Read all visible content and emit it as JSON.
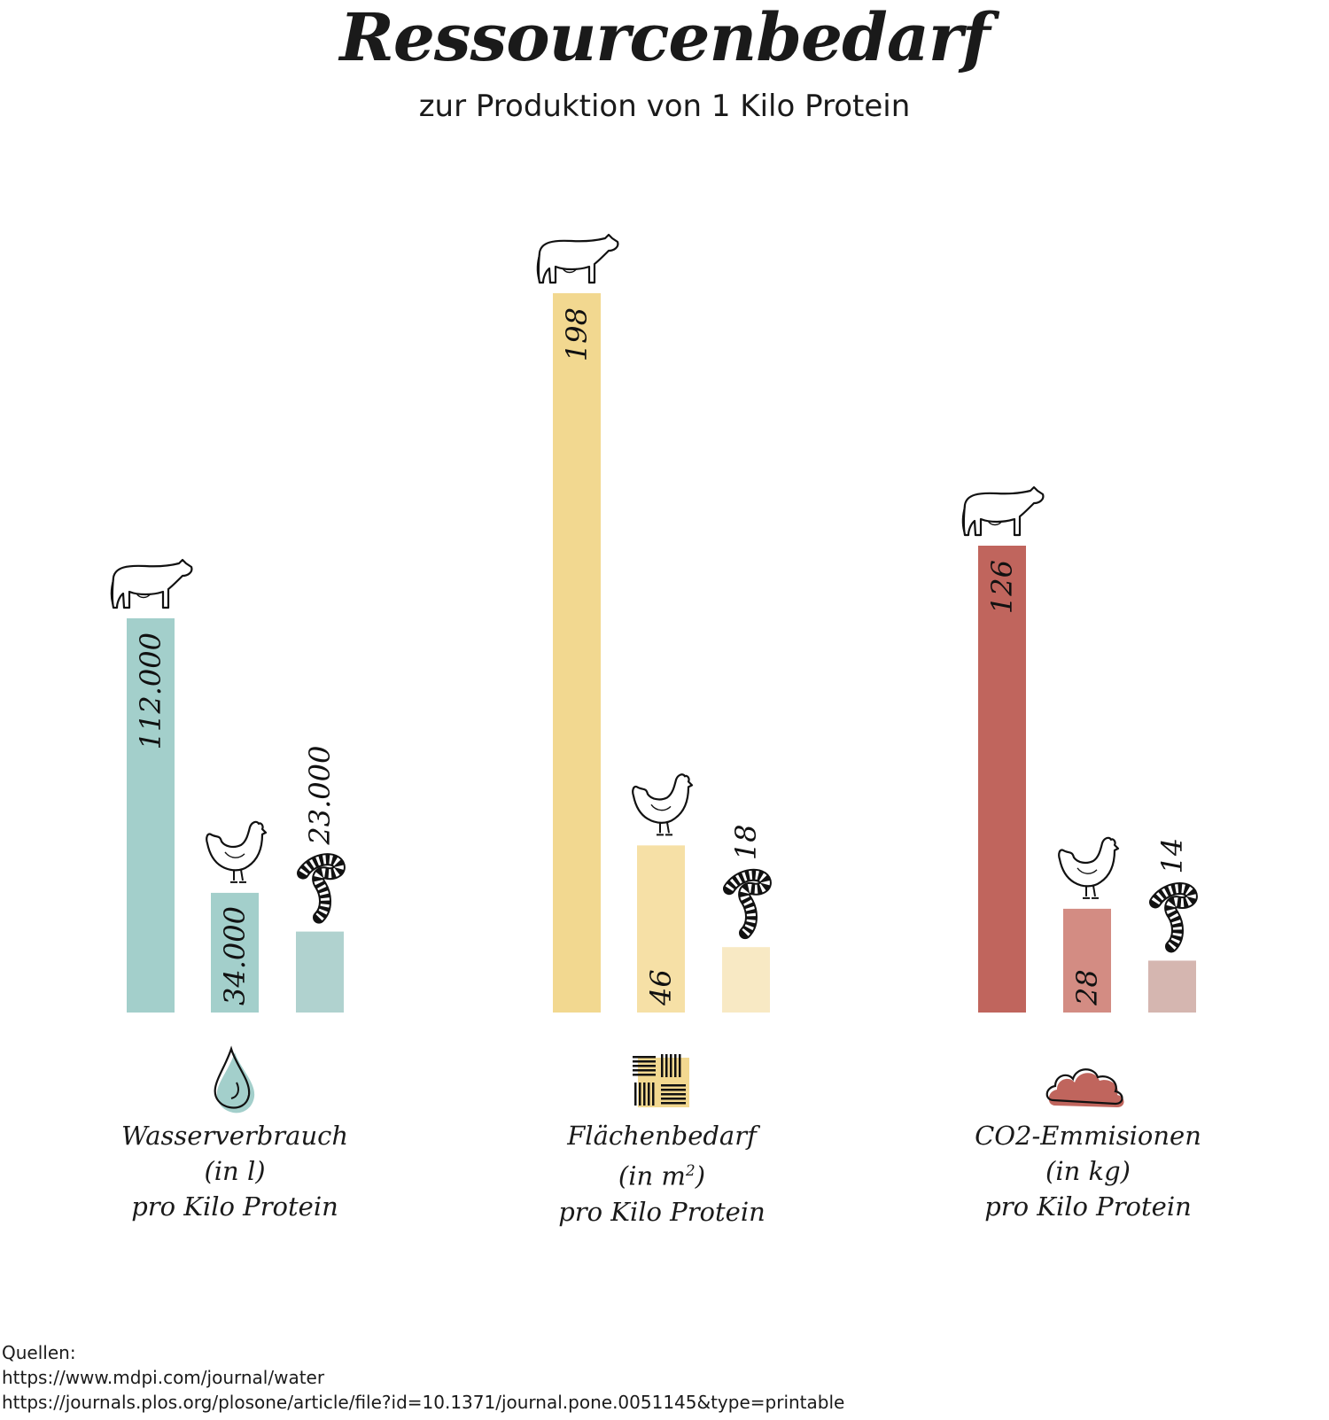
{
  "title": "Ressourcenbedarf",
  "subtitle": "zur Produktion von 1 Kilo Protein",
  "chart_data": [
    {
      "type": "bar",
      "categories": [
        "Rind",
        "Huhn",
        "Insekten"
      ],
      "values": [
        112000,
        34000,
        23000
      ],
      "value_labels": [
        "112.000",
        "34.000",
        "23.000"
      ],
      "label_lines": [
        "Wasserverbrauch",
        "(in l)",
        "pro Kilo Protein"
      ],
      "icon": "water-drop-icon",
      "colors": [
        "#a3cfcb",
        "#a3cfcb",
        "#b0d2cf"
      ]
    },
    {
      "type": "bar",
      "categories": [
        "Rind",
        "Huhn",
        "Insekten"
      ],
      "values": [
        198,
        46,
        18
      ],
      "value_labels": [
        "198",
        "46",
        "18"
      ],
      "label_lines": [
        "Flächenbedarf",
        "(in m",
        "2",
        ")",
        "pro Kilo Protein"
      ],
      "icon": "land-area-icon",
      "colors": [
        "#f2d890",
        "#f6e0a6",
        "#f8e9c4"
      ]
    },
    {
      "type": "bar",
      "categories": [
        "Rind",
        "Huhn",
        "Insekten"
      ],
      "values": [
        126,
        28,
        14
      ],
      "value_labels": [
        "126",
        "28",
        "14"
      ],
      "label_lines": [
        "CO2-Emmisionen",
        "(in kg)",
        "pro Kilo Protein"
      ],
      "icon": "cloud-icon",
      "colors": [
        "#c0655d",
        "#d38c83",
        "#d5b6b0"
      ]
    }
  ],
  "sources": {
    "heading": "Quellen:",
    "lines": [
      "https://www.mdpi.com/journal/water",
      "https://journals.plos.org/plosone/article/file?id=10.1371/journal.pone.0051145&type=printable"
    ]
  }
}
